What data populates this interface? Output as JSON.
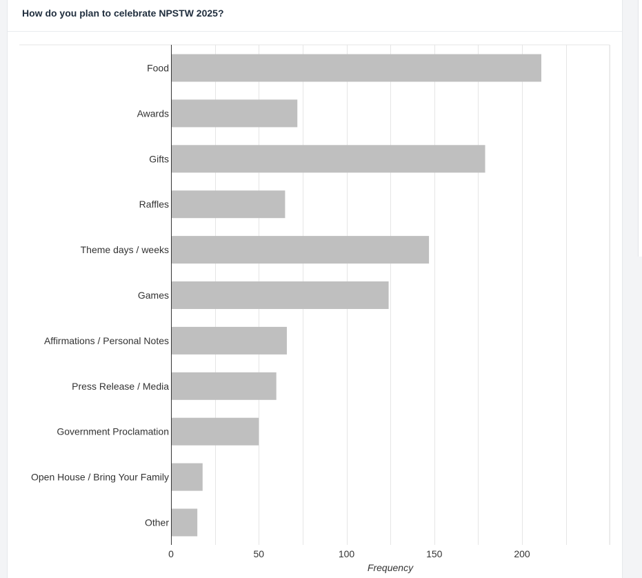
{
  "card": {
    "title": "How do you plan to celebrate NPSTW 2025?"
  },
  "chart_data": {
    "type": "bar",
    "orientation": "horizontal",
    "categories": [
      "Food",
      "Awards",
      "Gifts",
      "Raffles",
      "Theme days / weeks",
      "Games",
      "Affirmations / Personal Notes",
      "Press Release / Media",
      "Government Proclamation",
      "Open House / Bring Your Family",
      "Other"
    ],
    "values": [
      211,
      72,
      179,
      65,
      147,
      124,
      66,
      60,
      50,
      18,
      15
    ],
    "xlabel": "Frequency",
    "ylabel": "",
    "xlim": [
      0,
      250
    ],
    "xticks": [
      0,
      50,
      100,
      150,
      200
    ],
    "grid": true,
    "bar_color": "#bfbfbf",
    "grid_color": "#e5e5e5"
  }
}
